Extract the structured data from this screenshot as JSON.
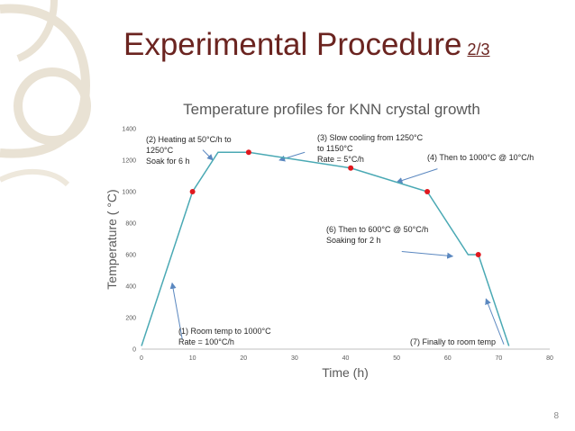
{
  "slide": {
    "title": "Experimental Procedure",
    "title_suffix": "2/3",
    "page_number": "8",
    "colors": {
      "title": "#6b2420",
      "line": "#4aa9b4",
      "point": "#e0181e",
      "arrow": "#5b88c0",
      "decor": "#e9e2d4"
    }
  },
  "chart_data": {
    "type": "line",
    "title": "Temperature profiles for KNN crystal growth",
    "xlabel": "Time (h)",
    "ylabel": "Temperature ( °C)",
    "xlim": [
      0,
      80
    ],
    "ylim": [
      0,
      1400
    ],
    "xticks": [
      0,
      10,
      20,
      30,
      40,
      50,
      60,
      70,
      80
    ],
    "yticks": [
      0,
      200,
      400,
      600,
      800,
      1000,
      1200,
      1400
    ],
    "grid": false,
    "series": [
      {
        "x": [
          0,
          10,
          15,
          21,
          41,
          56,
          64,
          66,
          72
        ],
        "y": [
          20,
          1000,
          1250,
          1250,
          1150,
          1000,
          600,
          600,
          20
        ]
      }
    ],
    "markers": [
      {
        "x": 10,
        "y": 1000
      },
      {
        "x": 21,
        "y": 1250
      },
      {
        "x": 41,
        "y": 1150
      },
      {
        "x": 56,
        "y": 1000
      },
      {
        "x": 66,
        "y": 600
      }
    ],
    "annotations": [
      {
        "id": "step1",
        "lines": [
          "(1) Room temp to 1000°C",
          "Rate = 100°C/h"
        ],
        "arrow_from": [
          8,
          60
        ],
        "arrow_to": [
          6,
          420
        ]
      },
      {
        "id": "step2",
        "lines": [
          "(2) Heating at 50°C/h to",
          "1250°C",
          "Soak for 6 h"
        ],
        "arrow_from": [
          12,
          1265
        ],
        "arrow_to": [
          14,
          1200
        ]
      },
      {
        "id": "step3",
        "lines": [
          "(3) Slow cooling from 1250°C",
          "to 1150°C",
          "Rate = 5°C/h"
        ],
        "arrow_from": [
          32,
          1250
        ],
        "arrow_to": [
          27,
          1200
        ]
      },
      {
        "id": "step4",
        "lines": [
          "(4) Then to 1000°C @ 10°C/h"
        ],
        "arrow_from": [
          58,
          1145
        ],
        "arrow_to": [
          50,
          1060
        ]
      },
      {
        "id": "step6",
        "lines": [
          "(6) Then to 600°C @ 50°C/h",
          "Soaking for 2 h"
        ],
        "arrow_from": [
          51,
          620
        ],
        "arrow_to": [
          61,
          590
        ]
      },
      {
        "id": "step7",
        "lines": [
          "(7) Finally to room temp"
        ],
        "arrow_from": [
          71,
          30
        ],
        "arrow_to": [
          67.5,
          320
        ]
      }
    ]
  }
}
